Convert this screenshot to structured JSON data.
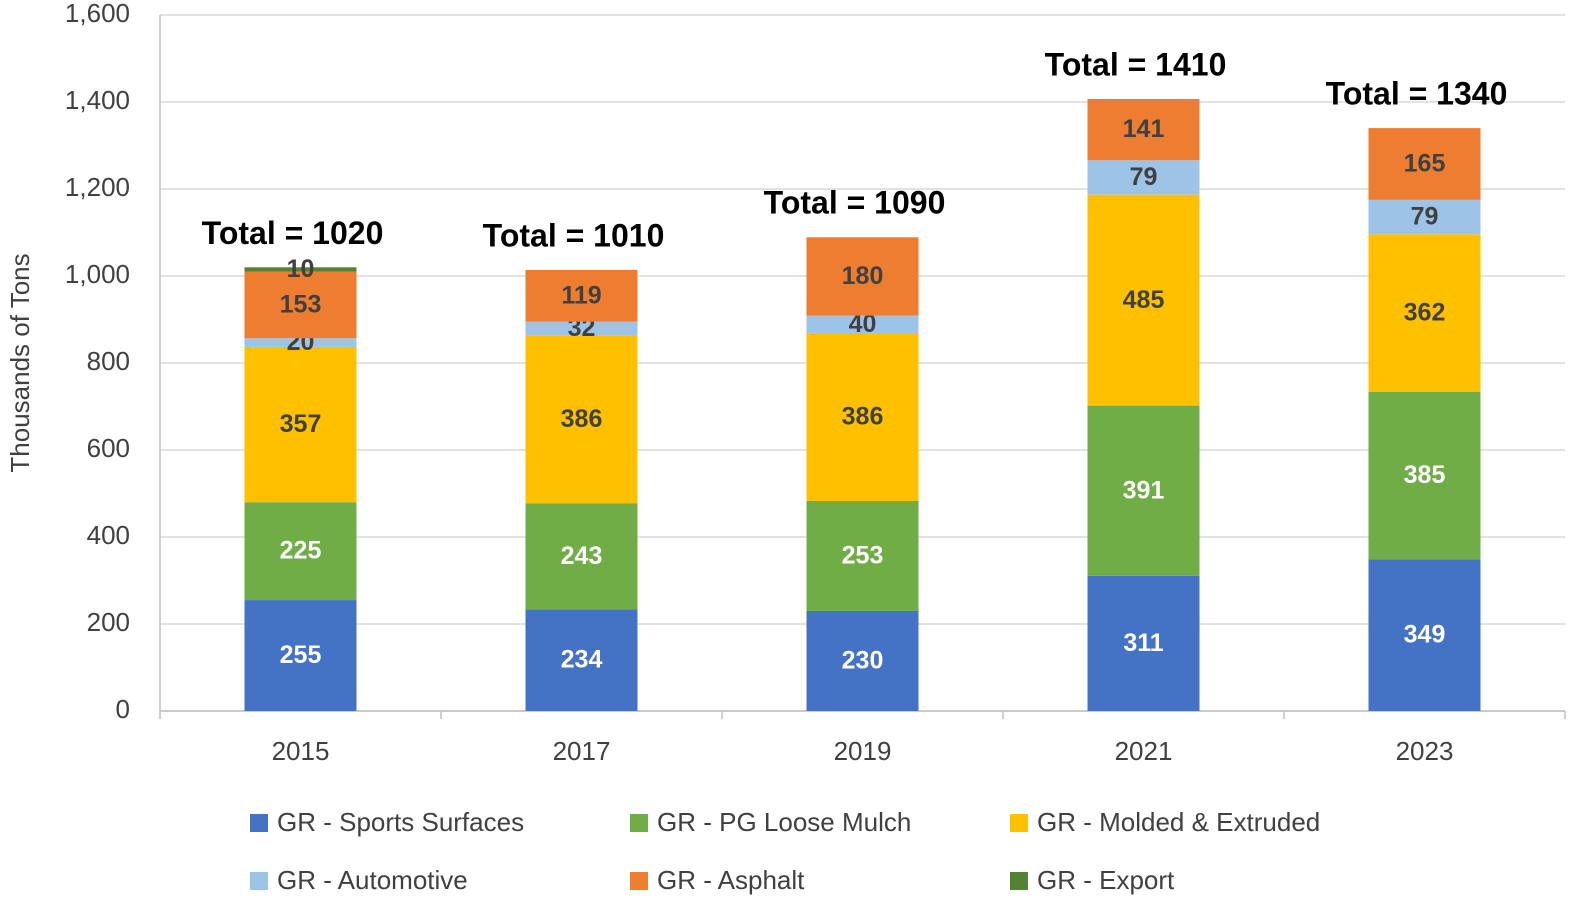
{
  "chart_data": {
    "type": "stacked_bar",
    "y_label": "Thousands of Tons",
    "categories": [
      "2015",
      "2017",
      "2019",
      "2021",
      "2023"
    ],
    "series": [
      {
        "name": "GR - Sports Surfaces",
        "color": "#4472c4",
        "values": [
          255,
          234,
          230,
          311,
          349
        ]
      },
      {
        "name": "GR - PG Loose Mulch",
        "color": "#70ad47",
        "values": [
          225,
          243,
          253,
          391,
          385
        ]
      },
      {
        "name": "GR - Molded & Extruded",
        "color": "#ffc000",
        "values": [
          357,
          386,
          386,
          485,
          362
        ]
      },
      {
        "name": "GR - Automotive",
        "color": "#9dc3e6",
        "values": [
          20,
          32,
          40,
          79,
          79
        ]
      },
      {
        "name": "GR - Asphalt",
        "color": "#ed7d31",
        "values": [
          153,
          119,
          180,
          141,
          165
        ]
      },
      {
        "name": "GR - Export",
        "color": "#548235",
        "values": [
          10,
          null,
          null,
          null,
          null
        ]
      }
    ],
    "annotations": [
      "Total = 1020",
      "Total = 1010",
      "Total = 1090",
      "Total = 1410",
      "Total = 1340"
    ],
    "ylim": [
      0,
      1600
    ],
    "yticks": [
      0,
      200,
      400,
      600,
      800,
      {
        "value": 1000,
        "label": "1,000"
      },
      {
        "value": 1200,
        "label": "1,200"
      },
      {
        "value": 1400,
        "label": "1,400"
      },
      {
        "value": 1600,
        "label": "1,600"
      }
    ],
    "grid": true,
    "legend": "bottom"
  }
}
